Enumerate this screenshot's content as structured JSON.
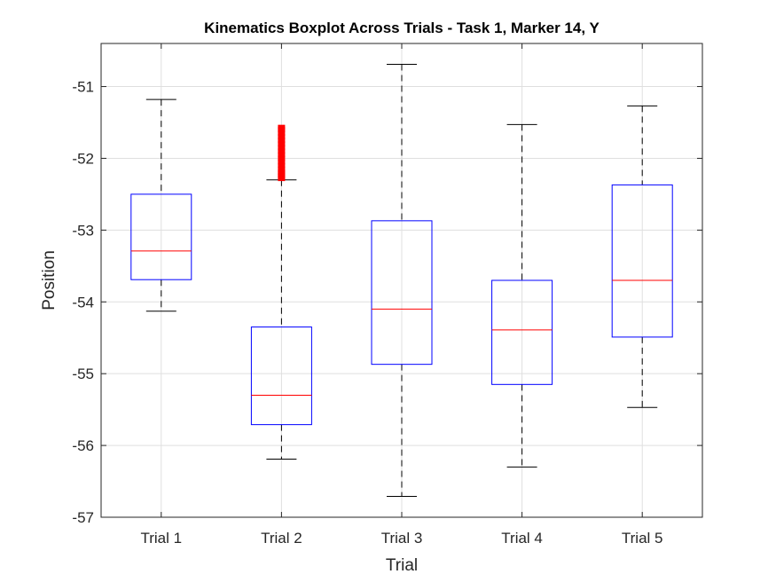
{
  "chart_data": {
    "type": "boxplot",
    "title": "Kinematics Boxplot Across Trials - Task 1, Marker 14, Y",
    "xlabel": "Trial",
    "ylabel": "Position",
    "categories": [
      "Trial 1",
      "Trial 2",
      "Trial 3",
      "Trial 4",
      "Trial 5"
    ],
    "ylim": [
      -57,
      -50.4
    ],
    "yticks": [
      -57,
      -56,
      -55,
      -54,
      -53,
      -52,
      -51
    ],
    "grid": true,
    "boxes": [
      {
        "name": "Trial 1",
        "whisker_low": -54.13,
        "q1": -53.69,
        "median": -53.29,
        "q3": -52.5,
        "whisker_high": -51.18,
        "outliers": []
      },
      {
        "name": "Trial 2",
        "whisker_low": -56.19,
        "q1": -55.71,
        "median": -55.3,
        "q3": -54.35,
        "whisker_high": -52.3,
        "outliers": [
          -52.28,
          -52.25,
          -52.22,
          -52.19,
          -52.15,
          -52.1,
          -52.05,
          -52.0,
          -51.95,
          -51.9,
          -51.85,
          -51.8,
          -51.75,
          -51.7,
          -51.65,
          -51.6,
          -51.57
        ]
      },
      {
        "name": "Trial 3",
        "whisker_low": -56.71,
        "q1": -54.87,
        "median": -54.1,
        "q3": -52.87,
        "whisker_high": -50.69,
        "outliers": []
      },
      {
        "name": "Trial 4",
        "whisker_low": -56.3,
        "q1": -55.15,
        "median": -54.39,
        "q3": -53.7,
        "whisker_high": -51.53,
        "outliers": []
      },
      {
        "name": "Trial 5",
        "whisker_low": -55.47,
        "q1": -54.49,
        "median": -53.7,
        "q3": -52.37,
        "whisker_high": -51.27,
        "outliers": []
      }
    ],
    "colors": {
      "box": "#0000ff",
      "median": "#ff0000",
      "whisker": "#000000",
      "outlier": "#ff0000",
      "grid": "#dfdfdf",
      "axis": "#262626"
    }
  }
}
